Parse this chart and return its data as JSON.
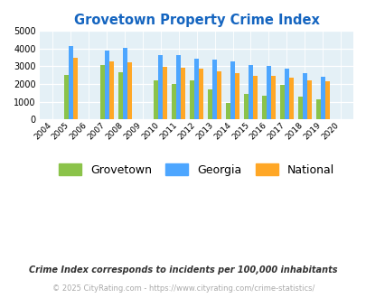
{
  "title": "Grovetown Property Crime Index",
  "years": [
    2004,
    2005,
    2006,
    2007,
    2008,
    2009,
    2010,
    2011,
    2012,
    2013,
    2014,
    2015,
    2016,
    2017,
    2018,
    2019,
    2020
  ],
  "grovetown": [
    null,
    2500,
    null,
    3050,
    2650,
    null,
    2200,
    2000,
    2200,
    1700,
    950,
    1450,
    1320,
    1930,
    1300,
    1120,
    null
  ],
  "georgia": [
    null,
    4150,
    null,
    3900,
    4020,
    null,
    3650,
    3650,
    3420,
    3360,
    3280,
    3050,
    3010,
    2880,
    2600,
    2400,
    null
  ],
  "national": [
    null,
    3450,
    null,
    3250,
    3200,
    null,
    2950,
    2920,
    2880,
    2730,
    2600,
    2480,
    2450,
    2350,
    2190,
    2140,
    null
  ],
  "ylim": [
    0,
    5000
  ],
  "yticks": [
    0,
    1000,
    2000,
    3000,
    4000,
    5000
  ],
  "bar_colors": {
    "grovetown": "#8BC34A",
    "georgia": "#4da6ff",
    "national": "#FFA726"
  },
  "legend_labels": [
    "Grovetown",
    "Georgia",
    "National"
  ],
  "subtitle": "Crime Index corresponds to incidents per 100,000 inhabitants",
  "copyright": "© 2025 CityRating.com - https://www.cityrating.com/crime-statistics/",
  "fig_bg_color": "#ffffff",
  "plot_bg_color": "#e4f0f6",
  "title_color": "#1565C0",
  "subtitle_color": "#333333",
  "copyright_color": "#aaaaaa",
  "bar_width": 0.25
}
